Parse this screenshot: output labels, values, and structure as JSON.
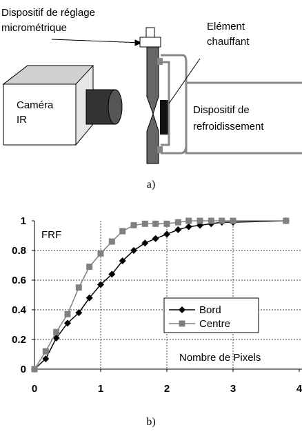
{
  "diagram": {
    "adjuster_label": [
      "Dispositif de réglage",
      "micrométrique"
    ],
    "heater_label": [
      "Elément",
      "chauffant"
    ],
    "camera_label": [
      "Caméra",
      "IR"
    ],
    "cooler_label": [
      "Dispositif de",
      "refroidissement"
    ]
  },
  "captions": [
    "a)",
    "b)"
  ],
  "chart_data": {
    "type": "line",
    "annotations": [
      "FRF",
      "Nombre de Pixels"
    ],
    "x": [
      0,
      0.17,
      0.33,
      0.5,
      0.67,
      0.83,
      1.0,
      1.17,
      1.33,
      1.5,
      1.67,
      1.83,
      2.0,
      2.17,
      2.33,
      2.5,
      2.67,
      2.83,
      3.0,
      3.8
    ],
    "series": [
      {
        "name": "Bord",
        "color": "#000000",
        "marker": "diamond",
        "values": [
          0,
          0.07,
          0.21,
          0.31,
          0.38,
          0.48,
          0.57,
          0.64,
          0.73,
          0.8,
          0.85,
          0.88,
          0.91,
          0.94,
          0.96,
          0.97,
          0.98,
          0.99,
          0.99,
          1.0
        ]
      },
      {
        "name": "Centre",
        "color": "#808080",
        "marker": "square",
        "values": [
          0,
          0.12,
          0.25,
          0.37,
          0.55,
          0.69,
          0.78,
          0.86,
          0.93,
          0.97,
          0.98,
          0.98,
          0.98,
          0.99,
          1.0,
          1.0,
          1.0,
          1.0,
          1.0,
          1.0
        ]
      }
    ],
    "xlim": [
      0,
      4
    ],
    "xticks": [
      0,
      1,
      2,
      3,
      4
    ],
    "ylim": [
      0,
      1
    ],
    "yticks": [
      0,
      0.2,
      0.4,
      0.6,
      0.8,
      1
    ],
    "grid": true
  }
}
